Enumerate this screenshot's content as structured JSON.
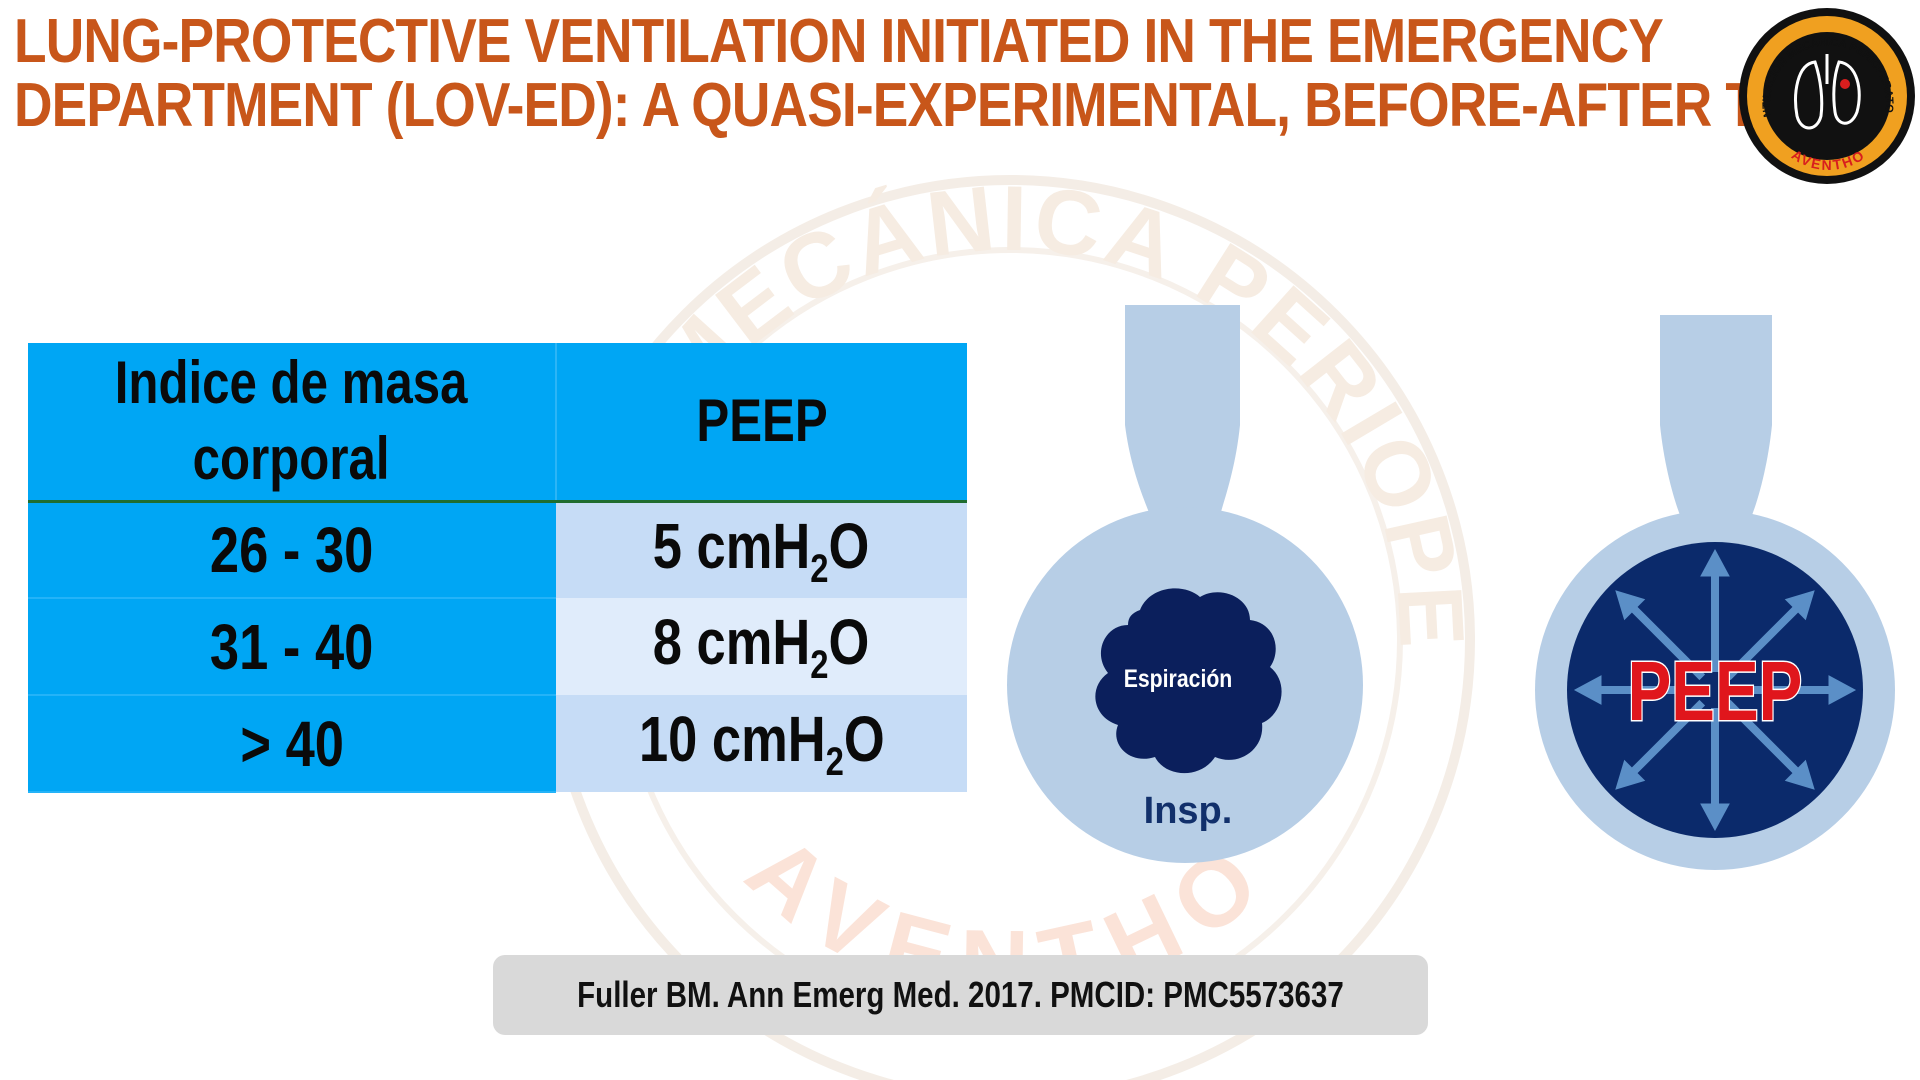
{
  "title": {
    "line1": "LUNG-PROTECTIVE VENTILATION INITIATED IN THE EMERGENCY",
    "line2": "DEPARTMENT (LOV-ED): A QUASI-EXPERIMENTAL, BEFORE-AFTER TRIAL"
  },
  "logo": {
    "text_top": "VENTILACIÓN MECÁNICA PERIOPERATORIA",
    "text_bottom": "AVENTHO",
    "ring_color": "#f0a020",
    "inner_color": "#111111",
    "accent_color": "#d81e1e"
  },
  "watermark": {
    "text_top": "VENTILACIÓN MECÁNICA PERIOPERATORIA",
    "text_bottom": "AVENTHO"
  },
  "table": {
    "header": {
      "col1_line1": "Indice de masa",
      "col1_line2": "corporal",
      "col2": "PEEP"
    },
    "rows": [
      {
        "bmi": "26 - 30",
        "peep_value": "5 cmH",
        "peep_sub": "2",
        "peep_suffix": "O"
      },
      {
        "bmi": "31 - 40",
        "peep_value": "8 cmH",
        "peep_sub": "2",
        "peep_suffix": "O"
      },
      {
        "bmi": "> 40",
        "peep_value": "10 cmH",
        "peep_sub": "2",
        "peep_suffix": "O"
      }
    ]
  },
  "diagram_left": {
    "inner_label": "Espiración",
    "bottom_label": "Insp.",
    "outer_color": "#b7cee6",
    "inner_color": "#0b1f5c"
  },
  "diagram_right": {
    "center_label": "PEEP",
    "outer_color": "#b7cee6",
    "inner_color": "#0b2a6b",
    "arrow_color": "#5b8fc7",
    "label_color": "#e0161c"
  },
  "citation": "Fuller BM. Ann Emerg Med. 2017. PMCID: PMC5573637"
}
